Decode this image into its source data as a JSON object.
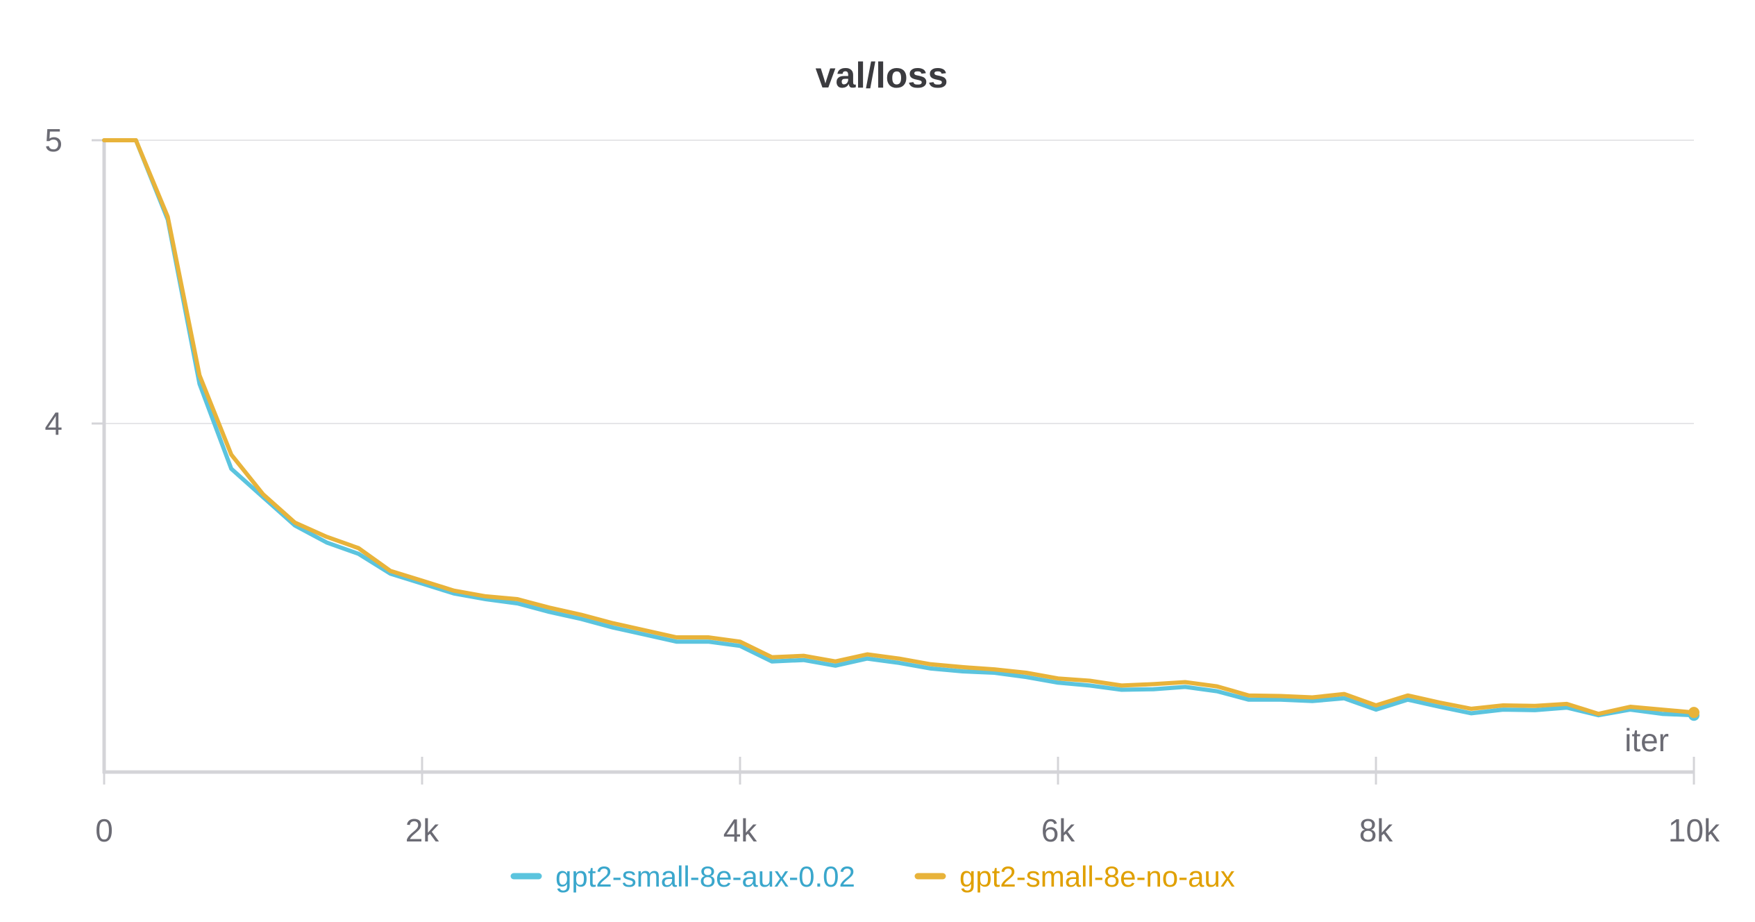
{
  "chart_data": {
    "type": "line",
    "title": "val/loss",
    "xlabel": "iter",
    "ylabel": "",
    "xlim": [
      0,
      10000
    ],
    "ylim": [
      2.88,
      5.0
    ],
    "grid": true,
    "legend_position": "bottom-center",
    "x_ticks": [
      0,
      2000,
      4000,
      6000,
      8000,
      10000
    ],
    "x_tick_labels": [
      "0",
      "2k",
      "4k",
      "6k",
      "8k",
      "10k"
    ],
    "y_ticks": [
      5,
      4
    ],
    "y_tick_labels": [
      "5",
      "4"
    ],
    "x": [
      0,
      200,
      400,
      600,
      800,
      1000,
      1200,
      1400,
      1600,
      1800,
      2000,
      2200,
      2400,
      2600,
      2800,
      3000,
      3200,
      3400,
      3600,
      3800,
      4000,
      4200,
      4400,
      4600,
      4800,
      5000,
      5200,
      5400,
      5600,
      5800,
      6000,
      6200,
      6400,
      6600,
      6800,
      7000,
      7200,
      7400,
      7600,
      7800,
      8000,
      8200,
      8400,
      8600,
      8800,
      9000,
      9200,
      9400,
      9600,
      9800,
      10000
    ],
    "series": [
      {
        "name": "gpt2-small-8e-aux-0.02",
        "color": "#5bc4de",
        "values": [
          5.0,
          5.0,
          4.72,
          4.14,
          3.84,
          3.74,
          3.64,
          3.58,
          3.54,
          3.47,
          3.435,
          3.4,
          3.38,
          3.365,
          3.335,
          3.31,
          3.28,
          3.255,
          3.23,
          3.23,
          3.215,
          3.16,
          3.165,
          3.145,
          3.17,
          3.155,
          3.135,
          3.125,
          3.12,
          3.105,
          3.085,
          3.075,
          3.06,
          3.062,
          3.07,
          3.055,
          3.025,
          3.025,
          3.02,
          3.03,
          2.99,
          3.025,
          3.0,
          2.977,
          2.99,
          2.988,
          2.997,
          2.97,
          2.99,
          2.975,
          2.97
        ]
      },
      {
        "name": "gpt2-small-8e-no-aux",
        "color": "#e8b33a",
        "values": [
          5.0,
          5.0,
          4.73,
          4.17,
          3.89,
          3.75,
          3.65,
          3.6,
          3.56,
          3.48,
          3.445,
          3.41,
          3.39,
          3.38,
          3.35,
          3.325,
          3.295,
          3.27,
          3.245,
          3.245,
          3.23,
          3.175,
          3.18,
          3.16,
          3.185,
          3.17,
          3.15,
          3.14,
          3.132,
          3.12,
          3.1,
          3.092,
          3.075,
          3.08,
          3.087,
          3.072,
          3.04,
          3.038,
          3.033,
          3.045,
          3.005,
          3.04,
          3.015,
          2.993,
          3.005,
          3.003,
          3.01,
          2.975,
          3.0,
          2.99,
          2.98
        ]
      }
    ]
  }
}
